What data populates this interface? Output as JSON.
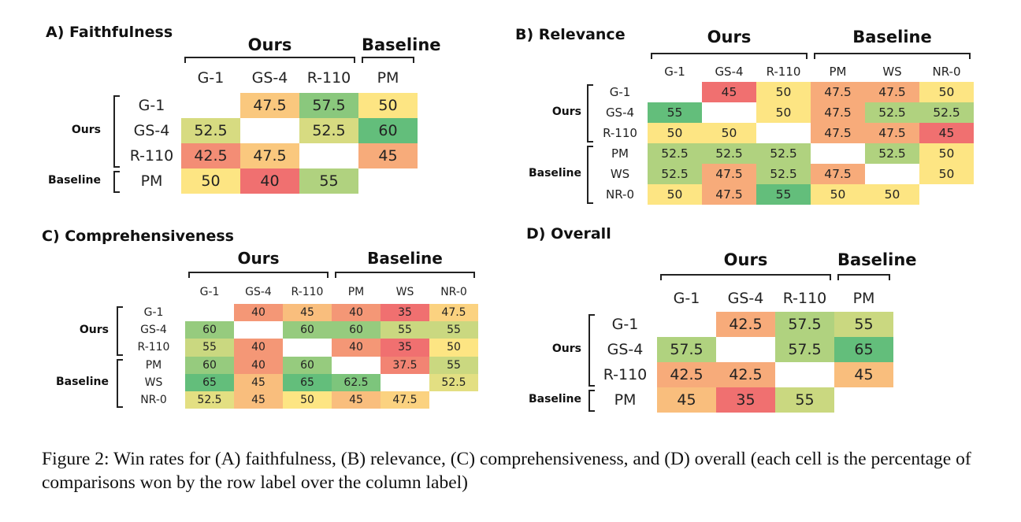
{
  "figure": {
    "caption": "Figure 2: Win rates for (A) faithfulness, (B) relevance, (C) comprehensiveness, and (D) overall (each cell is the percentage of comparisons won by the row label over the column label)"
  },
  "chart_data": [
    {
      "type": "heatmap",
      "id": "A",
      "title": "A) Faithfulness",
      "col_groups": [
        {
          "label": "Ours",
          "span": 3
        },
        {
          "label": "Baseline",
          "span": 1
        }
      ],
      "row_groups": [
        {
          "label": "Ours",
          "span": 3
        },
        {
          "label": "Baseline",
          "span": 1
        }
      ],
      "columns": [
        "G-1",
        "GS-4",
        "R-110",
        "PM"
      ],
      "rows": [
        "G-1",
        "GS-4",
        "R-110",
        "PM"
      ],
      "values": [
        [
          null,
          47.5,
          57.5,
          50
        ],
        [
          52.5,
          null,
          52.5,
          60
        ],
        [
          42.5,
          47.5,
          null,
          45
        ],
        [
          50,
          40,
          55,
          null
        ]
      ],
      "color_scale": {
        "low": "#f07070",
        "mid": "#fde583",
        "high": "#63be7b"
      }
    },
    {
      "type": "heatmap",
      "id": "B",
      "title": "B) Relevance",
      "col_groups": [
        {
          "label": "Ours",
          "span": 3
        },
        {
          "label": "Baseline",
          "span": 3
        }
      ],
      "row_groups": [
        {
          "label": "Ours",
          "span": 3
        },
        {
          "label": "Baseline",
          "span": 3
        }
      ],
      "columns": [
        "G-1",
        "GS-4",
        "R-110",
        "PM",
        "WS",
        "NR-0"
      ],
      "rows": [
        "G-1",
        "GS-4",
        "R-110",
        "PM",
        "WS",
        "NR-0"
      ],
      "values": [
        [
          null,
          45,
          50,
          47.5,
          47.5,
          50
        ],
        [
          55,
          null,
          50,
          47.5,
          52.5,
          52.5
        ],
        [
          50,
          50,
          null,
          47.5,
          47.5,
          45
        ],
        [
          52.5,
          52.5,
          52.5,
          null,
          52.5,
          50
        ],
        [
          52.5,
          47.5,
          52.5,
          47.5,
          null,
          50
        ],
        [
          50,
          47.5,
          55,
          50,
          50,
          null
        ]
      ],
      "color_scale": {
        "low": "#f07070",
        "mid": "#fde583",
        "high": "#63be7b"
      }
    },
    {
      "type": "heatmap",
      "id": "C",
      "title": "C) Comprehensiveness",
      "col_groups": [
        {
          "label": "Ours",
          "span": 3
        },
        {
          "label": "Baseline",
          "span": 3
        }
      ],
      "row_groups": [
        {
          "label": "Ours",
          "span": 3
        },
        {
          "label": "Baseline",
          "span": 3
        }
      ],
      "columns": [
        "G-1",
        "GS-4",
        "R-110",
        "PM",
        "WS",
        "NR-0"
      ],
      "rows": [
        "G-1",
        "GS-4",
        "R-110",
        "PM",
        "WS",
        "NR-0"
      ],
      "values": [
        [
          null,
          40,
          45,
          40,
          35,
          47.5
        ],
        [
          60,
          null,
          60,
          60,
          55,
          55
        ],
        [
          55,
          40,
          null,
          40,
          35,
          50
        ],
        [
          60,
          40,
          60,
          null,
          37.5,
          55
        ],
        [
          65,
          45,
          65,
          62.5,
          null,
          52.5
        ],
        [
          52.5,
          45,
          50,
          45,
          47.5,
          null
        ]
      ],
      "color_scale": {
        "low": "#f07070",
        "mid": "#fde583",
        "high": "#63be7b"
      }
    },
    {
      "type": "heatmap",
      "id": "D",
      "title": "D) Overall",
      "col_groups": [
        {
          "label": "Ours",
          "span": 3
        },
        {
          "label": "Baseline",
          "span": 1
        }
      ],
      "row_groups": [
        {
          "label": "Ours",
          "span": 3
        },
        {
          "label": "Baseline",
          "span": 1
        }
      ],
      "columns": [
        "G-1",
        "GS-4",
        "R-110",
        "PM"
      ],
      "rows": [
        "G-1",
        "GS-4",
        "R-110",
        "PM"
      ],
      "values": [
        [
          null,
          42.5,
          57.5,
          55
        ],
        [
          57.5,
          null,
          57.5,
          65
        ],
        [
          42.5,
          42.5,
          null,
          45
        ],
        [
          45,
          35,
          55,
          null
        ]
      ],
      "color_scale": {
        "low": "#f07070",
        "mid": "#fde583",
        "high": "#63be7b"
      }
    }
  ]
}
